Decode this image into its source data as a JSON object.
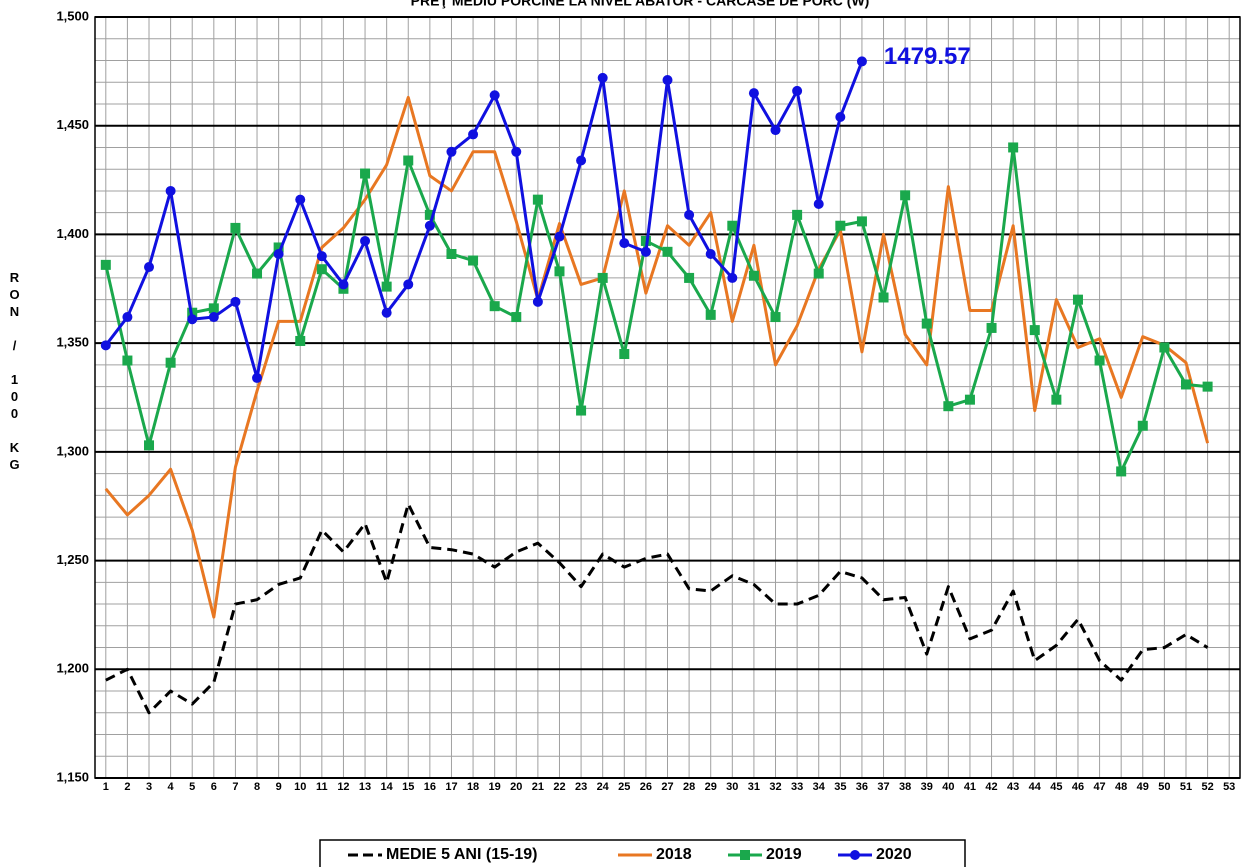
{
  "chart_data": {
    "type": "line",
    "title": "PREŢ MEDIU PORCINE LA NIVEL ABATOR - CARCASE DE PORC (W)",
    "y_label": "RON / 100 KG",
    "x": [
      1,
      2,
      3,
      4,
      5,
      6,
      7,
      8,
      9,
      10,
      11,
      12,
      13,
      14,
      15,
      16,
      17,
      18,
      19,
      20,
      21,
      22,
      23,
      24,
      25,
      26,
      27,
      28,
      29,
      30,
      31,
      32,
      33,
      34,
      35,
      36,
      37,
      38,
      39,
      40,
      41,
      42,
      43,
      44,
      45,
      46,
      47,
      48,
      49,
      50,
      51,
      52
    ],
    "xlim": [
      0.5,
      53.5
    ],
    "xticks": [
      1,
      2,
      3,
      4,
      5,
      6,
      7,
      8,
      9,
      10,
      11,
      12,
      13,
      14,
      15,
      16,
      17,
      18,
      19,
      20,
      21,
      22,
      23,
      24,
      25,
      26,
      27,
      28,
      29,
      30,
      31,
      32,
      33,
      34,
      35,
      36,
      37,
      38,
      39,
      40,
      41,
      42,
      43,
      44,
      45,
      46,
      47,
      48,
      49,
      50,
      51,
      52,
      53
    ],
    "ylim": [
      1150,
      1500
    ],
    "yticks": [
      {
        "value": 1150,
        "label": "1,150"
      },
      {
        "value": 1200,
        "label": "1,200"
      },
      {
        "value": 1250,
        "label": "1,250"
      },
      {
        "value": 1300,
        "label": "1,300"
      },
      {
        "value": 1350,
        "label": "1,350"
      },
      {
        "value": 1400,
        "label": "1,400"
      },
      {
        "value": 1450,
        "label": "1,450"
      },
      {
        "value": 1500,
        "label": "1,500"
      }
    ],
    "y_minor_grid": [
      1160,
      1170,
      1180,
      1190,
      1210,
      1220,
      1230,
      1240,
      1260,
      1270,
      1280,
      1290,
      1310,
      1320,
      1330,
      1340,
      1360,
      1370,
      1380,
      1390,
      1410,
      1420,
      1430,
      1440,
      1460,
      1470,
      1480,
      1490
    ],
    "grid": true,
    "legend": "bottom",
    "series": [
      {
        "name": "MEDIE 5 ANI (15-19)",
        "color": "#000000",
        "dash": true,
        "marker": "none",
        "values": [
          1195,
          1200,
          1180,
          1190,
          1184,
          1194,
          1230,
          1232,
          1239,
          1242,
          1264,
          1254,
          1267,
          1240,
          1276,
          1256,
          1255,
          1253,
          1247,
          1254,
          1258,
          1249,
          1238,
          1253,
          1247,
          1251,
          1253,
          1237,
          1236,
          1243,
          1239,
          1230,
          1230,
          1234,
          1245,
          1242,
          1232,
          1233,
          1207,
          1238,
          1214,
          1218,
          1236,
          1204,
          1211,
          1223,
          1204,
          1195,
          1209,
          1210,
          1216,
          1210
        ]
      },
      {
        "name": "2018",
        "color": "#e87722",
        "dash": false,
        "marker": "none",
        "values": [
          1283,
          1271,
          1280,
          1292,
          1264,
          1224,
          1293,
          1328,
          1360,
          1360,
          1394,
          1403,
          1416,
          1432,
          1463,
          1427,
          1420,
          1438,
          1438,
          1406,
          1370,
          1405,
          1377,
          1380,
          1420,
          1373,
          1404,
          1395,
          1410,
          1360,
          1395,
          1340,
          1358,
          1384,
          1402,
          1346,
          1400,
          1354,
          1340,
          1422,
          1365,
          1365,
          1404,
          1319,
          1370,
          1348,
          1352,
          1325,
          1353,
          1349,
          1341,
          1304
        ]
      },
      {
        "name": "2019",
        "color": "#1aa84c",
        "dash": false,
        "marker": "square",
        "values": [
          1386,
          1342,
          1303,
          1341,
          1364,
          1366,
          1403,
          1382,
          1394,
          1351,
          1384,
          1375,
          1428,
          1376,
          1434,
          1409,
          1391,
          1388,
          1367,
          1362,
          1416,
          1383,
          1319,
          1380,
          1345,
          1397,
          1392,
          1380,
          1363,
          1404,
          1381,
          1362,
          1409,
          1382,
          1404,
          1406,
          1371,
          1418,
          1359,
          1321,
          1324,
          1357,
          1440,
          1356,
          1324,
          1370,
          1342,
          1291,
          1312,
          1348,
          1331,
          1330
        ]
      },
      {
        "name": "2020",
        "color": "#1010e0",
        "dash": false,
        "marker": "circle",
        "values": [
          1349,
          1362,
          1385,
          1420,
          1361,
          1362,
          1369,
          1334,
          1391,
          1416,
          1390,
          1377,
          1397,
          1364,
          1377,
          1404,
          1438,
          1446,
          1464,
          1438,
          1369,
          1399,
          1434,
          1472,
          1396,
          1392,
          1471,
          1409,
          1391,
          1380,
          1465,
          1448,
          1466,
          1414,
          1454,
          1479.57,
          null,
          null,
          null,
          null,
          null,
          null,
          null,
          null,
          null,
          null,
          null,
          null,
          null,
          null,
          null,
          null
        ]
      }
    ]
  }
}
